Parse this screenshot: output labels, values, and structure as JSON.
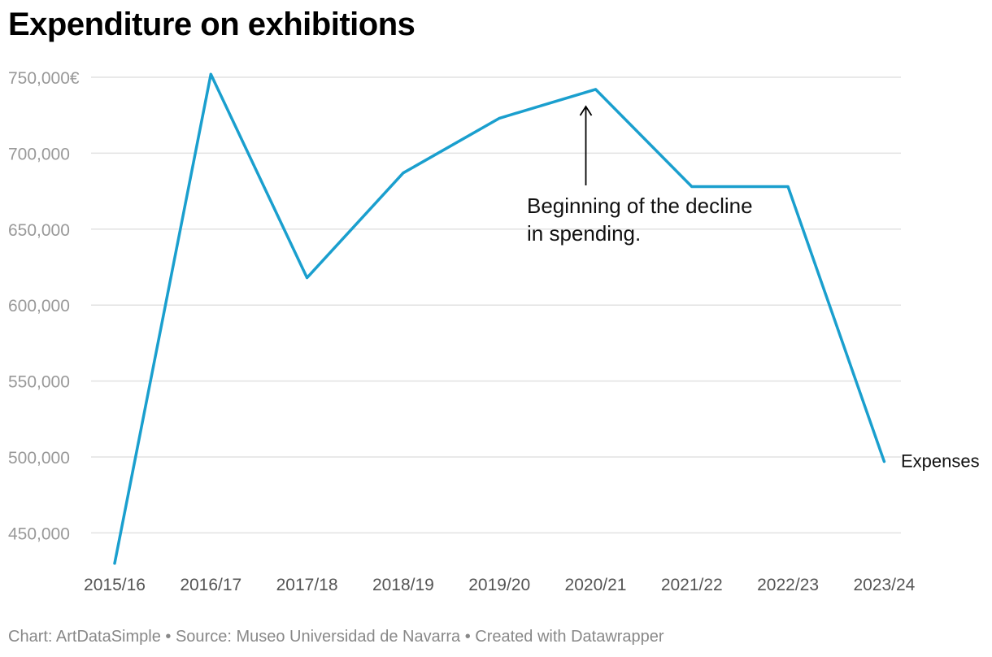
{
  "chart_data": {
    "type": "line",
    "title": "Expenditure on exhibitions",
    "categories": [
      "2015/16",
      "2016/17",
      "2017/18",
      "2018/19",
      "2019/20",
      "2020/21",
      "2021/22",
      "2022/23",
      "2023/24"
    ],
    "series": [
      {
        "name": "Expenses",
        "color": "#1a9fce",
        "values": [
          430000,
          752000,
          618000,
          687000,
          723000,
          742000,
          678000,
          678000,
          497000
        ]
      }
    ],
    "yticks": [
      450000,
      500000,
      550000,
      600000,
      650000,
      700000,
      750000
    ],
    "ytick_labels": [
      "450,000",
      "500,000",
      "550,000",
      "600,000",
      "650,000",
      "700,000",
      "750,000€"
    ],
    "ylim": [
      430000,
      752000
    ],
    "grid": true,
    "annotation": {
      "lines": [
        "Beginning of the decline",
        "in spending."
      ],
      "category": "2020/21"
    }
  },
  "footer": "Chart: ArtDataSimple • Source: Museo Universidad de Navarra • Created with Datawrapper"
}
